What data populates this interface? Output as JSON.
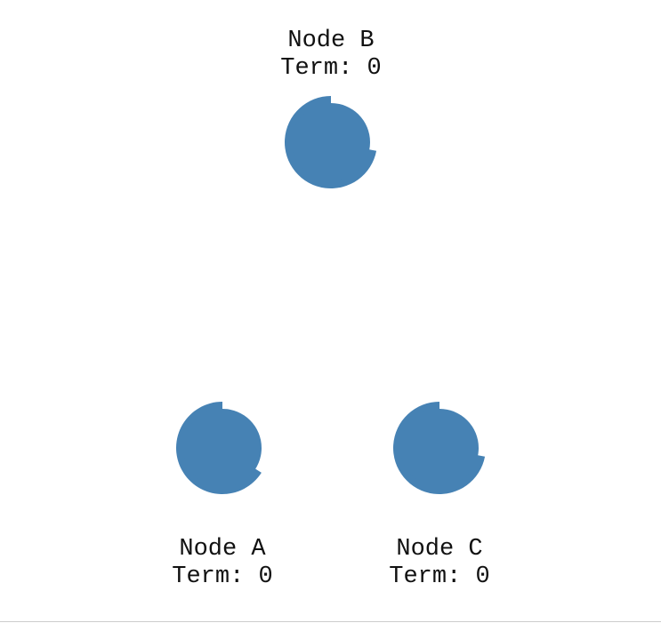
{
  "color": "#4682b4",
  "nodes": [
    {
      "id": "A",
      "name": "Node A",
      "term_label": "Term: 0",
      "timeout_remaining": 0.66
    },
    {
      "id": "B",
      "name": "Node B",
      "term_label": "Term: 0",
      "timeout_remaining": 0.72
    },
    {
      "id": "C",
      "name": "Node C",
      "term_label": "Term: 0",
      "timeout_remaining": 0.72
    }
  ]
}
